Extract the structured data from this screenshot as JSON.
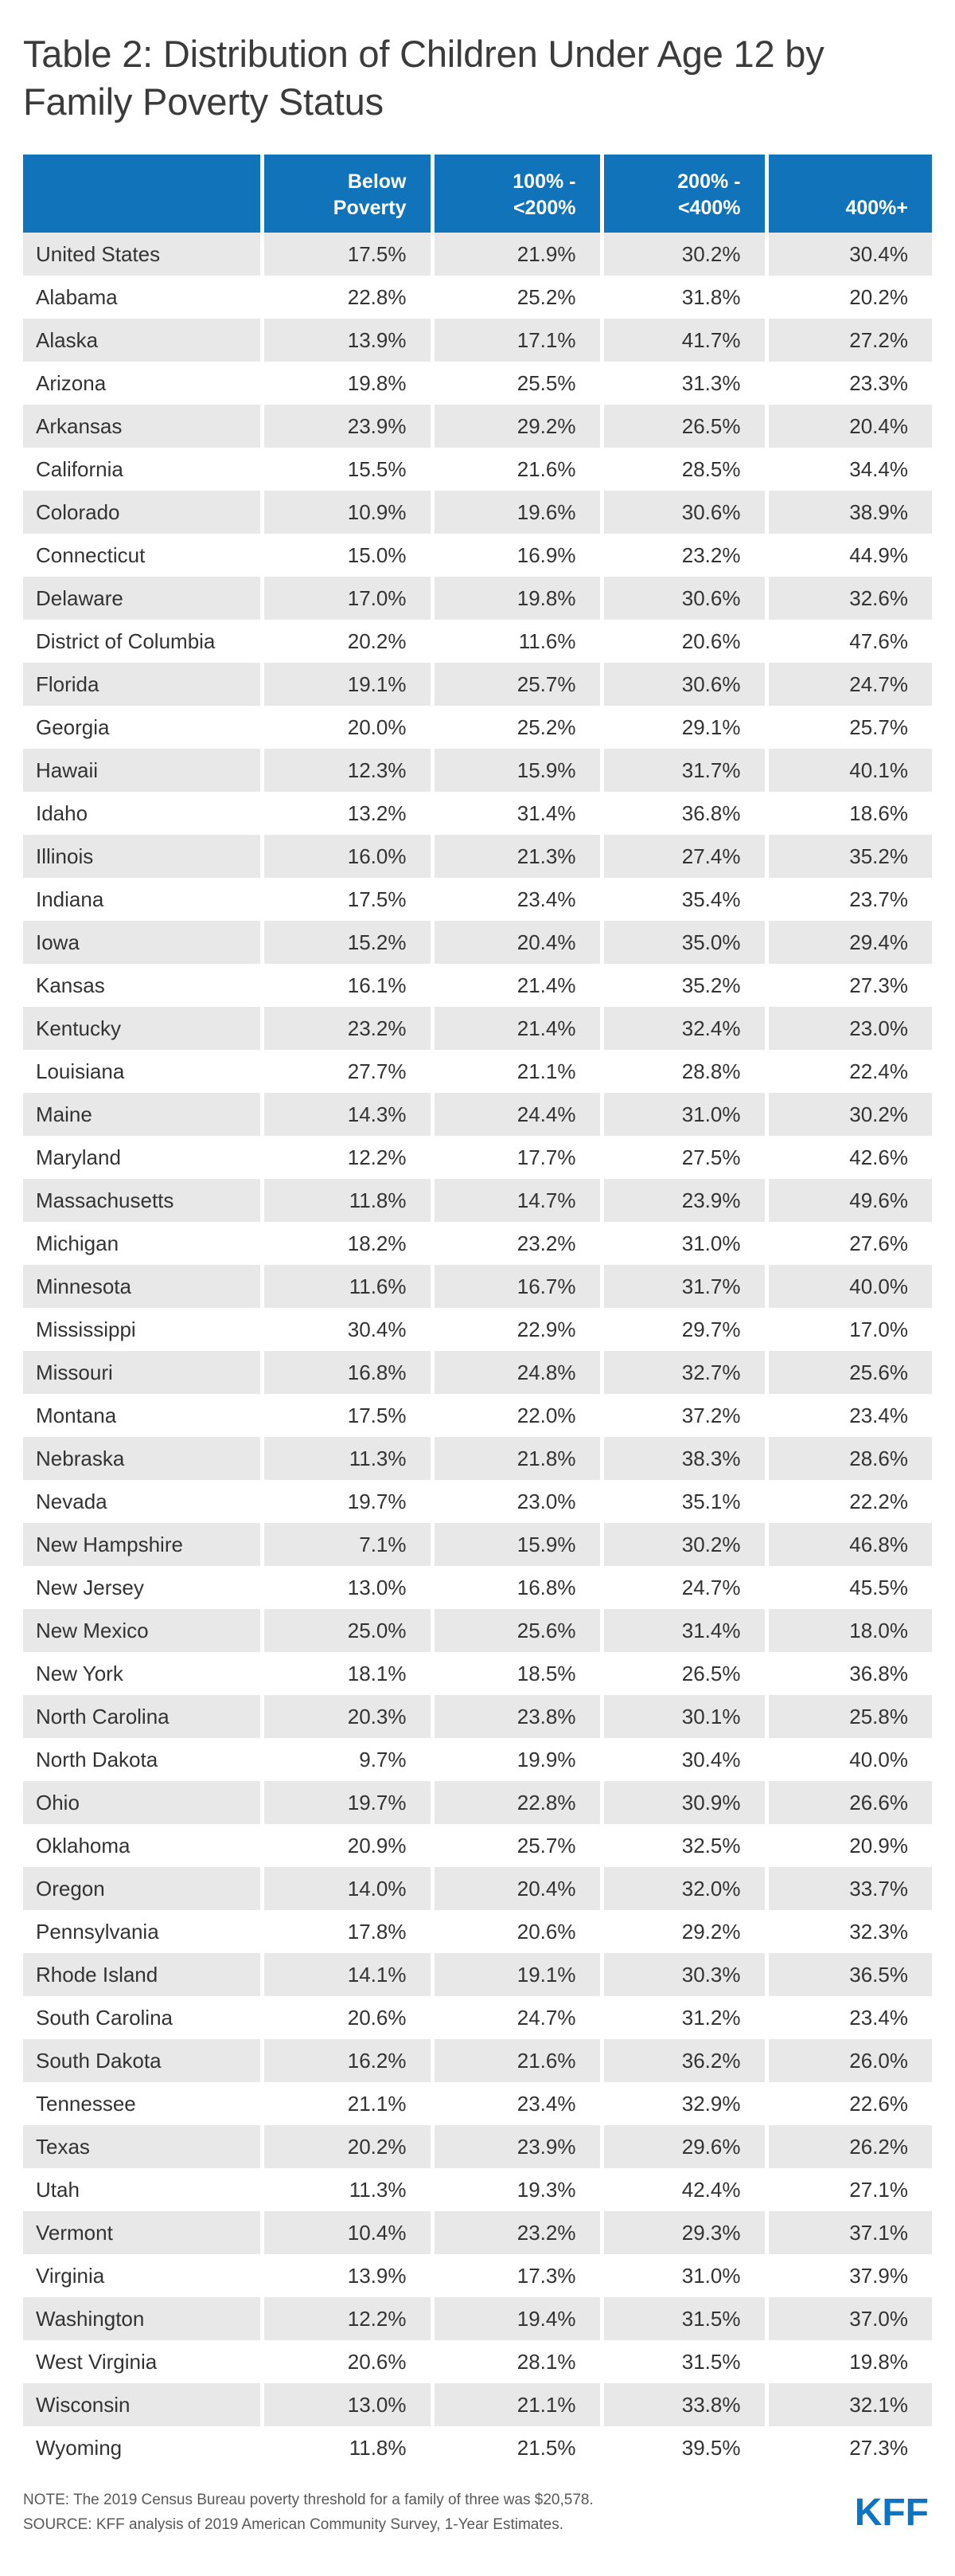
{
  "title": "Table 2: Distribution of Children Under Age 12 by Family Poverty Status",
  "chart_data": {
    "type": "table",
    "title": "Table 2: Distribution of Children Under Age 12 by Family Poverty Status",
    "row_header": "",
    "columns": [
      "Below\nPoverty",
      "100% -\n<200%",
      "200% -\n<400%",
      "400%+"
    ],
    "rows": [
      {
        "label": "United States",
        "values": [
          "17.5%",
          "21.9%",
          "30.2%",
          "30.4%"
        ]
      },
      {
        "label": "Alabama",
        "values": [
          "22.8%",
          "25.2%",
          "31.8%",
          "20.2%"
        ]
      },
      {
        "label": "Alaska",
        "values": [
          "13.9%",
          "17.1%",
          "41.7%",
          "27.2%"
        ]
      },
      {
        "label": "Arizona",
        "values": [
          "19.8%",
          "25.5%",
          "31.3%",
          "23.3%"
        ]
      },
      {
        "label": "Arkansas",
        "values": [
          "23.9%",
          "29.2%",
          "26.5%",
          "20.4%"
        ]
      },
      {
        "label": "California",
        "values": [
          "15.5%",
          "21.6%",
          "28.5%",
          "34.4%"
        ]
      },
      {
        "label": "Colorado",
        "values": [
          "10.9%",
          "19.6%",
          "30.6%",
          "38.9%"
        ]
      },
      {
        "label": "Connecticut",
        "values": [
          "15.0%",
          "16.9%",
          "23.2%",
          "44.9%"
        ]
      },
      {
        "label": "Delaware",
        "values": [
          "17.0%",
          "19.8%",
          "30.6%",
          "32.6%"
        ]
      },
      {
        "label": "District of Columbia",
        "values": [
          "20.2%",
          "11.6%",
          "20.6%",
          "47.6%"
        ]
      },
      {
        "label": "Florida",
        "values": [
          "19.1%",
          "25.7%",
          "30.6%",
          "24.7%"
        ]
      },
      {
        "label": "Georgia",
        "values": [
          "20.0%",
          "25.2%",
          "29.1%",
          "25.7%"
        ]
      },
      {
        "label": "Hawaii",
        "values": [
          "12.3%",
          "15.9%",
          "31.7%",
          "40.1%"
        ]
      },
      {
        "label": "Idaho",
        "values": [
          "13.2%",
          "31.4%",
          "36.8%",
          "18.6%"
        ]
      },
      {
        "label": "Illinois",
        "values": [
          "16.0%",
          "21.3%",
          "27.4%",
          "35.2%"
        ]
      },
      {
        "label": "Indiana",
        "values": [
          "17.5%",
          "23.4%",
          "35.4%",
          "23.7%"
        ]
      },
      {
        "label": "Iowa",
        "values": [
          "15.2%",
          "20.4%",
          "35.0%",
          "29.4%"
        ]
      },
      {
        "label": "Kansas",
        "values": [
          "16.1%",
          "21.4%",
          "35.2%",
          "27.3%"
        ]
      },
      {
        "label": "Kentucky",
        "values": [
          "23.2%",
          "21.4%",
          "32.4%",
          "23.0%"
        ]
      },
      {
        "label": "Louisiana",
        "values": [
          "27.7%",
          "21.1%",
          "28.8%",
          "22.4%"
        ]
      },
      {
        "label": "Maine",
        "values": [
          "14.3%",
          "24.4%",
          "31.0%",
          "30.2%"
        ]
      },
      {
        "label": "Maryland",
        "values": [
          "12.2%",
          "17.7%",
          "27.5%",
          "42.6%"
        ]
      },
      {
        "label": "Massachusetts",
        "values": [
          "11.8%",
          "14.7%",
          "23.9%",
          "49.6%"
        ]
      },
      {
        "label": "Michigan",
        "values": [
          "18.2%",
          "23.2%",
          "31.0%",
          "27.6%"
        ]
      },
      {
        "label": "Minnesota",
        "values": [
          "11.6%",
          "16.7%",
          "31.7%",
          "40.0%"
        ]
      },
      {
        "label": "Mississippi",
        "values": [
          "30.4%",
          "22.9%",
          "29.7%",
          "17.0%"
        ]
      },
      {
        "label": "Missouri",
        "values": [
          "16.8%",
          "24.8%",
          "32.7%",
          "25.6%"
        ]
      },
      {
        "label": "Montana",
        "values": [
          "17.5%",
          "22.0%",
          "37.2%",
          "23.4%"
        ]
      },
      {
        "label": "Nebraska",
        "values": [
          "11.3%",
          "21.8%",
          "38.3%",
          "28.6%"
        ]
      },
      {
        "label": "Nevada",
        "values": [
          "19.7%",
          "23.0%",
          "35.1%",
          "22.2%"
        ]
      },
      {
        "label": "New Hampshire",
        "values": [
          "7.1%",
          "15.9%",
          "30.2%",
          "46.8%"
        ]
      },
      {
        "label": "New Jersey",
        "values": [
          "13.0%",
          "16.8%",
          "24.7%",
          "45.5%"
        ]
      },
      {
        "label": "New Mexico",
        "values": [
          "25.0%",
          "25.6%",
          "31.4%",
          "18.0%"
        ]
      },
      {
        "label": "New York",
        "values": [
          "18.1%",
          "18.5%",
          "26.5%",
          "36.8%"
        ]
      },
      {
        "label": "North Carolina",
        "values": [
          "20.3%",
          "23.8%",
          "30.1%",
          "25.8%"
        ]
      },
      {
        "label": "North Dakota",
        "values": [
          "9.7%",
          "19.9%",
          "30.4%",
          "40.0%"
        ]
      },
      {
        "label": "Ohio",
        "values": [
          "19.7%",
          "22.8%",
          "30.9%",
          "26.6%"
        ]
      },
      {
        "label": "Oklahoma",
        "values": [
          "20.9%",
          "25.7%",
          "32.5%",
          "20.9%"
        ]
      },
      {
        "label": "Oregon",
        "values": [
          "14.0%",
          "20.4%",
          "32.0%",
          "33.7%"
        ]
      },
      {
        "label": "Pennsylvania",
        "values": [
          "17.8%",
          "20.6%",
          "29.2%",
          "32.3%"
        ]
      },
      {
        "label": "Rhode Island",
        "values": [
          "14.1%",
          "19.1%",
          "30.3%",
          "36.5%"
        ]
      },
      {
        "label": "South Carolina",
        "values": [
          "20.6%",
          "24.7%",
          "31.2%",
          "23.4%"
        ]
      },
      {
        "label": "South Dakota",
        "values": [
          "16.2%",
          "21.6%",
          "36.2%",
          "26.0%"
        ]
      },
      {
        "label": "Tennessee",
        "values": [
          "21.1%",
          "23.4%",
          "32.9%",
          "22.6%"
        ]
      },
      {
        "label": "Texas",
        "values": [
          "20.2%",
          "23.9%",
          "29.6%",
          "26.2%"
        ]
      },
      {
        "label": "Utah",
        "values": [
          "11.3%",
          "19.3%",
          "42.4%",
          "27.1%"
        ]
      },
      {
        "label": "Vermont",
        "values": [
          "10.4%",
          "23.2%",
          "29.3%",
          "37.1%"
        ]
      },
      {
        "label": "Virginia",
        "values": [
          "13.9%",
          "17.3%",
          "31.0%",
          "37.9%"
        ]
      },
      {
        "label": "Washington",
        "values": [
          "12.2%",
          "19.4%",
          "31.5%",
          "37.0%"
        ]
      },
      {
        "label": "West Virginia",
        "values": [
          "20.6%",
          "28.1%",
          "31.5%",
          "19.8%"
        ]
      },
      {
        "label": "Wisconsin",
        "values": [
          "13.0%",
          "21.1%",
          "33.8%",
          "32.1%"
        ]
      },
      {
        "label": "Wyoming",
        "values": [
          "11.8%",
          "21.5%",
          "39.5%",
          "27.3%"
        ]
      }
    ]
  },
  "footer": {
    "note": "NOTE: The 2019 Census Bureau poverty threshold for a family of three was $20,578.",
    "source": "SOURCE: KFF analysis of 2019 American Community Survey, 1-Year Estimates.",
    "logo": "KFF"
  },
  "colors": {
    "header_bg": "#1173b9",
    "row_alt_bg": "#e8e8e8",
    "logo_blue": "#0b74c4"
  }
}
